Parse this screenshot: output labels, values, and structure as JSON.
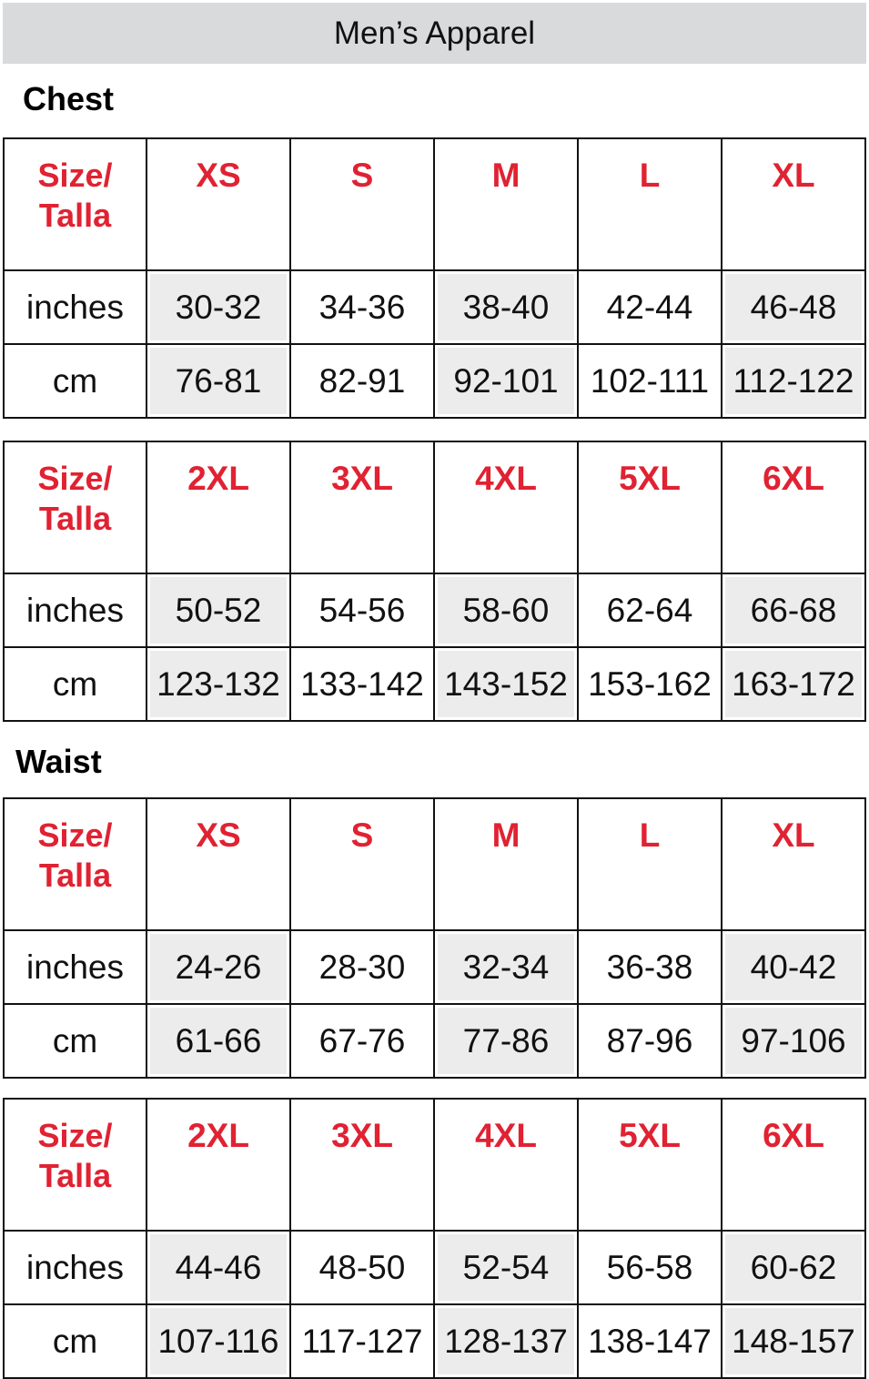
{
  "title": "Men’s Apparel",
  "colors": {
    "header_text": "#e02232",
    "banner": "#d9dadc",
    "shade": "#ececec"
  },
  "sections": [
    {
      "label": "Chest",
      "tables": [
        {
          "size_label": "Size/ Talla",
          "sizes": [
            "XS",
            "S",
            "M",
            "L",
            "XL"
          ],
          "rows": [
            {
              "unit": "inches",
              "values": [
                "30-32",
                "34-36",
                "38-40",
                "42-44",
                "46-48"
              ]
            },
            {
              "unit": "cm",
              "values": [
                "76-81",
                "82-91",
                "92-101",
                "102-111",
                "112-122"
              ]
            }
          ]
        },
        {
          "size_label": "Size/ Talla",
          "sizes": [
            "2XL",
            "3XL",
            "4XL",
            "5XL",
            "6XL"
          ],
          "rows": [
            {
              "unit": "inches",
              "values": [
                "50-52",
                "54-56",
                "58-60",
                "62-64",
                "66-68"
              ]
            },
            {
              "unit": "cm",
              "values": [
                "123-132",
                "133-142",
                "143-152",
                "153-162",
                "163-172"
              ]
            }
          ]
        }
      ]
    },
    {
      "label": "Waist",
      "tables": [
        {
          "size_label": "Size/ Talla",
          "sizes": [
            "XS",
            "S",
            "M",
            "L",
            "XL"
          ],
          "rows": [
            {
              "unit": "inches",
              "values": [
                "24-26",
                "28-30",
                "32-34",
                "36-38",
                "40-42"
              ]
            },
            {
              "unit": "cm",
              "values": [
                "61-66",
                "67-76",
                "77-86",
                "87-96",
                "97-106"
              ]
            }
          ]
        },
        {
          "size_label": "Size/ Talla",
          "sizes": [
            "2XL",
            "3XL",
            "4XL",
            "5XL",
            "6XL"
          ],
          "rows": [
            {
              "unit": "inches",
              "values": [
                "44-46",
                "48-50",
                "52-54",
                "56-58",
                "60-62"
              ]
            },
            {
              "unit": "cm",
              "values": [
                "107-116",
                "117-127",
                "128-137",
                "138-147",
                "148-157"
              ]
            }
          ]
        }
      ]
    }
  ]
}
